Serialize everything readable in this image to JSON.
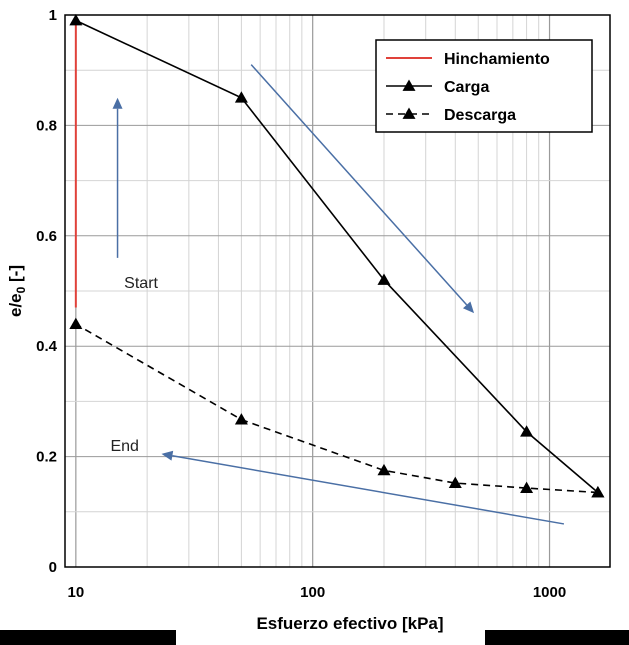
{
  "chart_data": {
    "type": "line",
    "title": "",
    "xlabel": "Esfuerzo efectivo [kPa]",
    "ylabel": "e/e",
    "ylabel_sub": "0",
    "ylabel_unit": " [-]",
    "xscale": "log",
    "xlim": [
      9,
      1800
    ],
    "ylim": [
      0,
      1
    ],
    "x_ticks": [
      10,
      100,
      1000
    ],
    "x_tick_labels": [
      "10",
      "100",
      "1000"
    ],
    "y_ticks": [
      0,
      0.2,
      0.4,
      0.6,
      0.8,
      1
    ],
    "y_tick_labels": [
      "0",
      "0.2",
      "0.4",
      "0.6",
      "0.8",
      "1"
    ],
    "grid": true,
    "legend_position": "top-right",
    "series": [
      {
        "name": "Hinchamiento",
        "style": "solid",
        "color": "#e0413a",
        "marker": "none",
        "x": [
          10,
          10
        ],
        "y": [
          0.47,
          0.99
        ]
      },
      {
        "name": "Carga",
        "style": "solid",
        "color": "#000000",
        "marker": "triangle",
        "x": [
          10,
          50,
          200,
          800,
          1600
        ],
        "y": [
          0.99,
          0.85,
          0.52,
          0.245,
          0.135
        ]
      },
      {
        "name": "Descarga",
        "style": "dashed",
        "color": "#000000",
        "marker": "triangle",
        "x": [
          1600,
          800,
          400,
          200,
          50,
          10
        ],
        "y": [
          0.135,
          0.143,
          0.152,
          0.175,
          0.267,
          0.44
        ]
      }
    ],
    "annotations": [
      {
        "text": "Start",
        "x": 16,
        "y": 0.505
      },
      {
        "text": "End",
        "x": 14,
        "y": 0.21
      }
    ],
    "arrows": [
      {
        "color": "#4a6fa5",
        "from": [
          15,
          0.56
        ],
        "to": [
          15,
          0.85
        ]
      },
      {
        "color": "#4a6fa5",
        "from": [
          55,
          0.91
        ],
        "to": [
          480,
          0.46
        ]
      },
      {
        "color": "#4a6fa5",
        "from": [
          1150,
          0.078
        ],
        "to": [
          23,
          0.205
        ]
      }
    ]
  }
}
